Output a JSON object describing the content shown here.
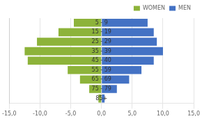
{
  "chart_data": {
    "type": "bar",
    "orientation": "horizontal",
    "categories": [
      "5 - 9",
      "15 - 19",
      "25 - 29",
      "35 - 39",
      "45 - 40",
      "55 - 59",
      "65 - 69",
      "75 - 79",
      "85+"
    ],
    "series": [
      {
        "name": "WOMEN",
        "color": "#8db33a",
        "values": [
          -4.5,
          -7.0,
          -10.5,
          -12.5,
          -12.0,
          -5.5,
          -3.5,
          -2.0,
          -0.5
        ]
      },
      {
        "name": "MEN",
        "color": "#4472c4",
        "values": [
          7.5,
          8.5,
          9.0,
          10.0,
          8.5,
          6.5,
          4.5,
          2.5,
          0.5
        ]
      }
    ],
    "xlim": [
      -15,
      15
    ],
    "xticks": [
      {
        "value": -15,
        "label": "-15,0"
      },
      {
        "value": -10,
        "label": "-10,0"
      },
      {
        "value": -5,
        "label": "-5,0"
      },
      {
        "value": 0,
        "label": "0,0"
      },
      {
        "value": 5,
        "label": "5,0"
      },
      {
        "value": 10,
        "label": "10,0"
      },
      {
        "value": 15,
        "label": "15,0"
      }
    ],
    "grid": true,
    "legend": "upper right",
    "tick_labels": "x"
  }
}
